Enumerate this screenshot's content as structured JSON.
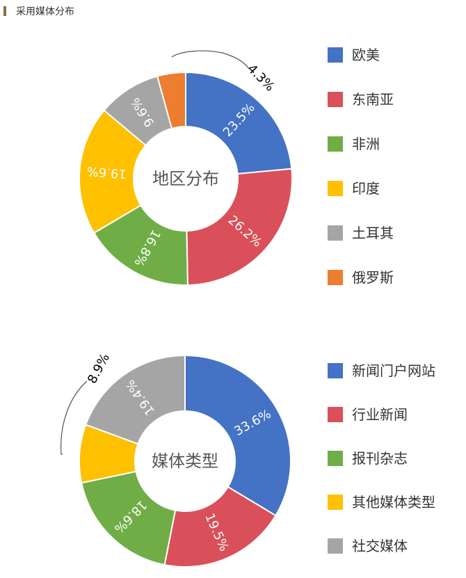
{
  "header": {
    "title": "采用媒体分布"
  },
  "chart_data": [
    {
      "type": "pie",
      "title": "地区分布",
      "slices": [
        {
          "label": "欧美",
          "value": 23.5,
          "value_label": "23.5%",
          "color": "#4472c4"
        },
        {
          "label": "东南亚",
          "value": 26.2,
          "value_label": "26.2%",
          "color": "#d9505a"
        },
        {
          "label": "非洲",
          "value": 16.8,
          "value_label": "16.8%",
          "color": "#70ad47"
        },
        {
          "label": "印度",
          "value": 19.6,
          "value_label": "19.6%",
          "color": "#ffc000"
        },
        {
          "label": "土耳其",
          "value": 9.6,
          "value_label": "9.6%",
          "color": "#a5a5a5"
        },
        {
          "label": "俄罗斯",
          "value": 4.3,
          "value_label": "4.3%",
          "color": "#ed7d31"
        }
      ],
      "legend_position": "right"
    },
    {
      "type": "pie",
      "title": "媒体类型",
      "slices": [
        {
          "label": "新闻门户网站",
          "value": 33.6,
          "value_label": "33.6%",
          "color": "#4472c4"
        },
        {
          "label": "行业新闻",
          "value": 19.5,
          "value_label": "19.5%",
          "color": "#d9505a"
        },
        {
          "label": "报刊杂志",
          "value": 18.6,
          "value_label": "18.6%",
          "color": "#70ad47"
        },
        {
          "label": "其他媒体类型",
          "value": 8.9,
          "value_label": "8.9%",
          "color": "#ffc000"
        },
        {
          "label": "社交媒体",
          "value": 19.4,
          "value_label": "19.4%",
          "color": "#a5a5a5"
        }
      ],
      "legend_position": "right"
    }
  ]
}
